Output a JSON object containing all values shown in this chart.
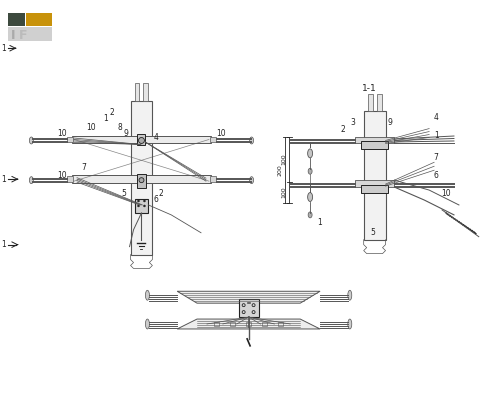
{
  "bg_color": "#ffffff",
  "line_color": "#555555",
  "dark_color": "#222222",
  "logo_dark": "#3d4a3e",
  "logo_yellow": "#c8920a",
  "logo_gray": "#d0d0d0",
  "title": "1-1",
  "label_fontsize": 5.5,
  "title_fontsize": 6.5,
  "dim_color": "#333333"
}
